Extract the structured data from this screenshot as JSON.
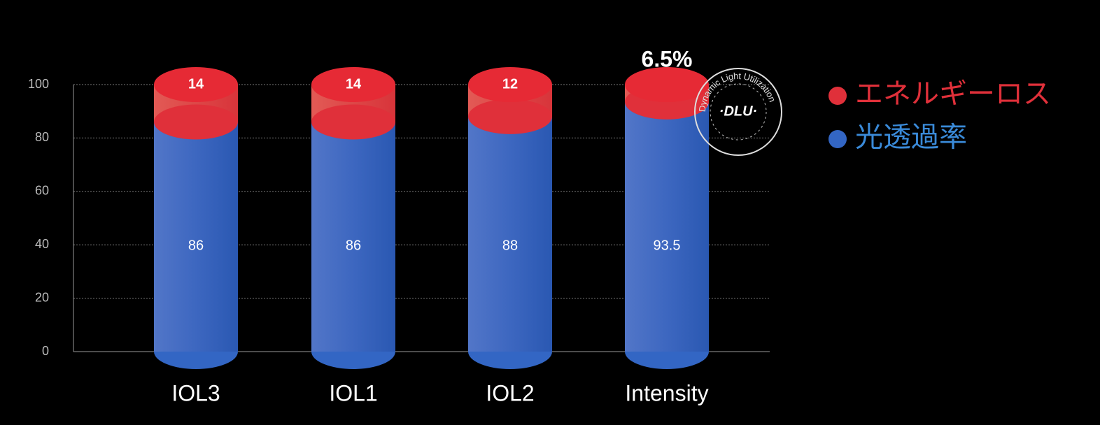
{
  "chart_data": {
    "type": "stacked-cylinder",
    "categories": [
      "IOL3",
      "IOL1",
      "IOL2",
      "Intensity"
    ],
    "series": [
      {
        "name": "光透過率",
        "color": "#3366c4",
        "values": [
          86,
          86,
          88,
          93.5
        ]
      },
      {
        "name": "エネルギーロス",
        "color": "#e0303a",
        "values": [
          14,
          14,
          12,
          6.5
        ],
        "value_labels": [
          "14",
          "14",
          "12",
          "6.5%"
        ]
      }
    ],
    "ylim": [
      0,
      100
    ],
    "yticks": [
      0,
      20,
      40,
      60,
      80,
      100
    ],
    "grid": true,
    "annotations": [
      "·DLU·",
      "Dynamic Light Utilization"
    ]
  }
}
